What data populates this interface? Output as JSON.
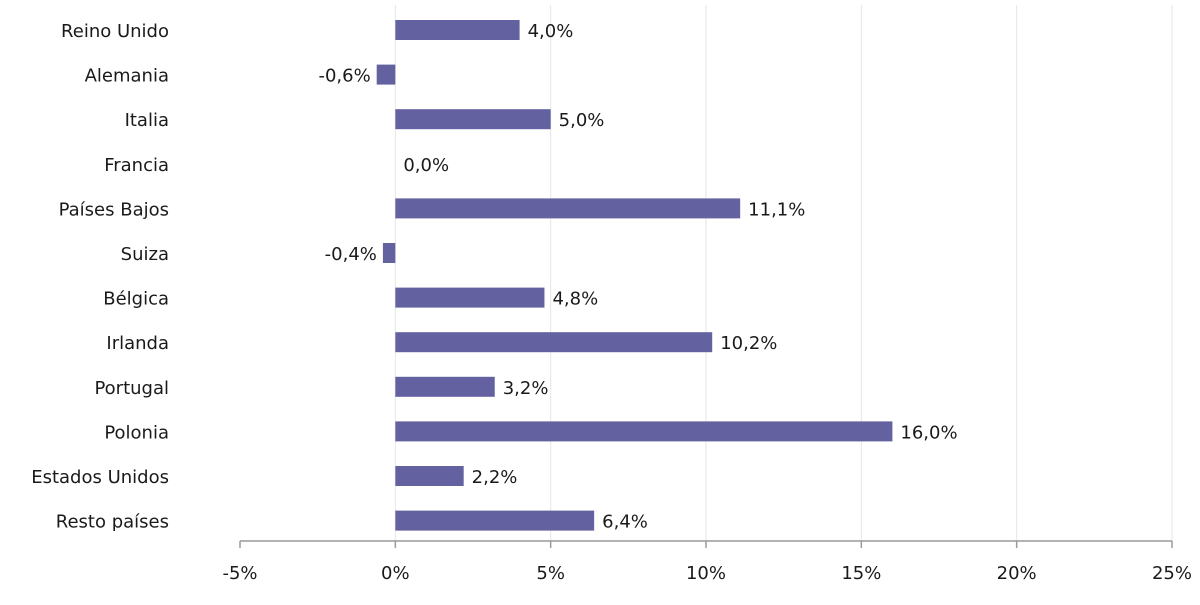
{
  "chart_data": {
    "type": "bar",
    "orientation": "horizontal",
    "title": "",
    "xlabel": "",
    "ylabel": "",
    "categories": [
      "Reino Unido",
      "Alemania",
      "Italia",
      "Francia",
      "Países Bajos",
      "Suiza",
      "Bélgica",
      "Irlanda",
      "Portugal",
      "Polonia",
      "Estados Unidos",
      "Resto países"
    ],
    "values": [
      4.0,
      -0.6,
      5.0,
      0.0,
      11.1,
      -0.4,
      4.8,
      10.2,
      3.2,
      16.0,
      2.2,
      6.4
    ],
    "value_labels": [
      "4,0%",
      "-0,6%",
      "5,0%",
      "0,0%",
      "11,1%",
      "-0,4%",
      "4,8%",
      "10,2%",
      "3,2%",
      "16,0%",
      "2,2%",
      "6,4%"
    ],
    "xlim": [
      -5,
      25
    ],
    "xticks": [
      -5,
      0,
      5,
      10,
      15,
      20,
      25
    ],
    "xtick_labels": [
      "-5%",
      "0%",
      "5%",
      "10%",
      "15%",
      "20%",
      "25%"
    ],
    "grid": "vertical",
    "legend": "none",
    "bar_color": "#6461a0"
  }
}
